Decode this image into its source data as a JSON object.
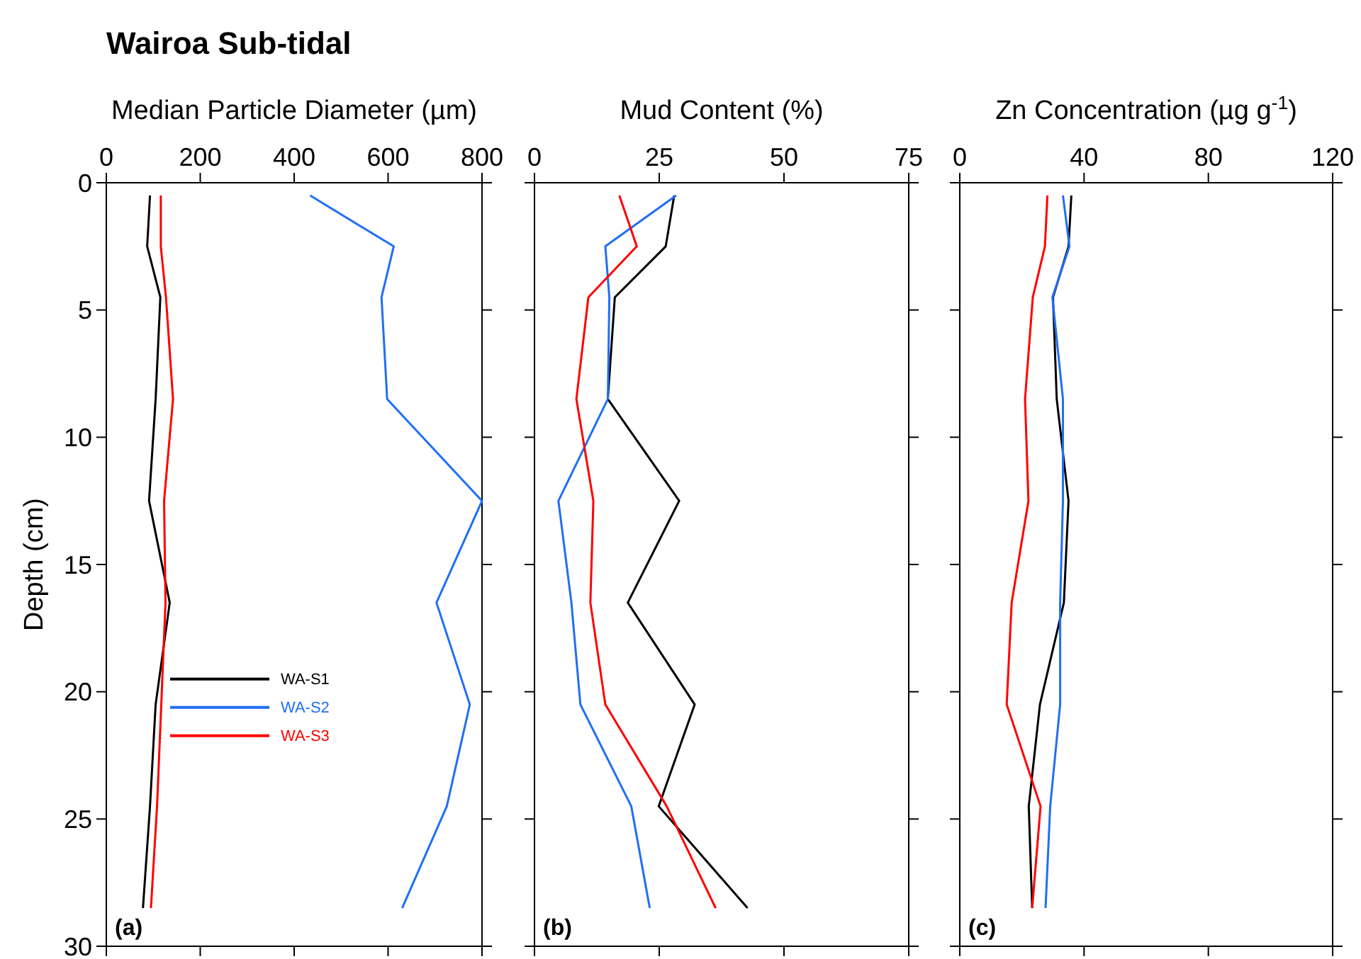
{
  "chart_data": [
    {
      "type": "line",
      "title": "Wairoa Sub-tidal",
      "xlabel": "Median Particle Diameter (µm)",
      "ylabel": "Depth (cm)",
      "xlim": [
        0,
        800
      ],
      "xticks": [
        0,
        200,
        400,
        600,
        800
      ],
      "ylim": [
        30,
        0
      ],
      "yticks": [
        0,
        5,
        10,
        15,
        20,
        25,
        30
      ],
      "grid": false,
      "legend": "bottom left",
      "marker": "none",
      "line_style": "solid",
      "annotations": [
        "(a)"
      ],
      "series": [
        {
          "name": "WA-S1",
          "color": "#000000",
          "x": [
            93,
            87,
            115,
            105,
            91,
            135,
            105,
            93,
            78
          ],
          "values": [
            0.5,
            2.5,
            4.5,
            8.5,
            12.5,
            16.5,
            20.5,
            24.5,
            28.5
          ]
        },
        {
          "name": "WA-S2",
          "color": "#1f6ff5",
          "x": [
            434,
            612,
            586,
            598,
            800,
            703,
            774,
            725,
            630
          ],
          "values": [
            0.5,
            2.5,
            4.5,
            8.5,
            12.5,
            16.5,
            20.5,
            24.5,
            28.5
          ]
        },
        {
          "name": "WA-S3",
          "color": "#ff0000",
          "x": [
            116,
            116,
            127,
            142,
            123,
            126,
            117,
            108,
            95
          ],
          "values": [
            0.5,
            2.5,
            4.5,
            8.5,
            12.5,
            16.5,
            20.5,
            24.5,
            28.5
          ]
        }
      ]
    },
    {
      "type": "line",
      "xlabel": "Mud Content (%)",
      "xlim": [
        0,
        75
      ],
      "xticks": [
        0,
        25,
        50,
        75
      ],
      "ylim": [
        30,
        0
      ],
      "yticks": [
        0,
        5,
        10,
        15,
        20,
        25,
        30
      ],
      "tick_labels": "x",
      "grid": false,
      "legend": false,
      "marker": "none",
      "line_style": "solid",
      "annotations": [
        "(b)"
      ],
      "series": [
        {
          "color": "#000000",
          "x": [
            28,
            26.3,
            16.1,
            14.7,
            29,
            18.7,
            32.1,
            24.9,
            42.7
          ],
          "values": [
            0.5,
            2.5,
            4.5,
            8.5,
            12.5,
            16.5,
            20.5,
            24.5,
            28.5
          ]
        },
        {
          "color": "#1f6ff5",
          "x": [
            28.4,
            14.2,
            15,
            14.7,
            4.8,
            7.4,
            9.2,
            19.4,
            23.1
          ],
          "values": [
            0.5,
            2.5,
            4.5,
            8.5,
            12.5,
            16.5,
            20.5,
            24.5,
            28.5
          ]
        },
        {
          "color": "#ff0000",
          "x": [
            17,
            20.5,
            10.8,
            8.4,
            11.8,
            11.2,
            14.2,
            26.5,
            36.3
          ],
          "values": [
            0.5,
            2.5,
            4.5,
            8.5,
            12.5,
            16.5,
            20.5,
            24.5,
            28.5
          ]
        }
      ]
    },
    {
      "type": "line",
      "xlabel": "Zn Concentration (µg g$^{-1}$)",
      "xlim": [
        0,
        120
      ],
      "xticks": [
        0,
        40,
        80,
        120
      ],
      "ylim": [
        30,
        0
      ],
      "yticks": [
        0,
        5,
        10,
        15,
        20,
        25,
        30
      ],
      "tick_labels": "x",
      "grid": false,
      "legend": false,
      "marker": "none",
      "line_style": "solid",
      "annotations": [
        "(c)"
      ],
      "series": [
        {
          "color": "#000000",
          "x": [
            35.9,
            35,
            30,
            31.2,
            35,
            33.5,
            25.8,
            22.2,
            23.3
          ],
          "values": [
            0.5,
            2.5,
            4.5,
            8.5,
            12.5,
            16.5,
            20.5,
            24.5,
            28.5
          ]
        },
        {
          "color": "#1f6ff5",
          "x": [
            33.2,
            35.3,
            29.8,
            33.2,
            33.2,
            32.3,
            32.3,
            29.1,
            27.6
          ],
          "values": [
            0.5,
            2.5,
            4.5,
            8.5,
            12.5,
            16.5,
            20.5,
            24.5,
            28.5
          ]
        },
        {
          "color": "#ff0000",
          "x": [
            28.2,
            27.4,
            23.5,
            21,
            22.1,
            16.7,
            15.1,
            26,
            23.3
          ],
          "values": [
            0.5,
            2.5,
            4.5,
            8.5,
            12.5,
            16.5,
            20.5,
            24.5,
            28.5
          ]
        }
      ]
    }
  ]
}
